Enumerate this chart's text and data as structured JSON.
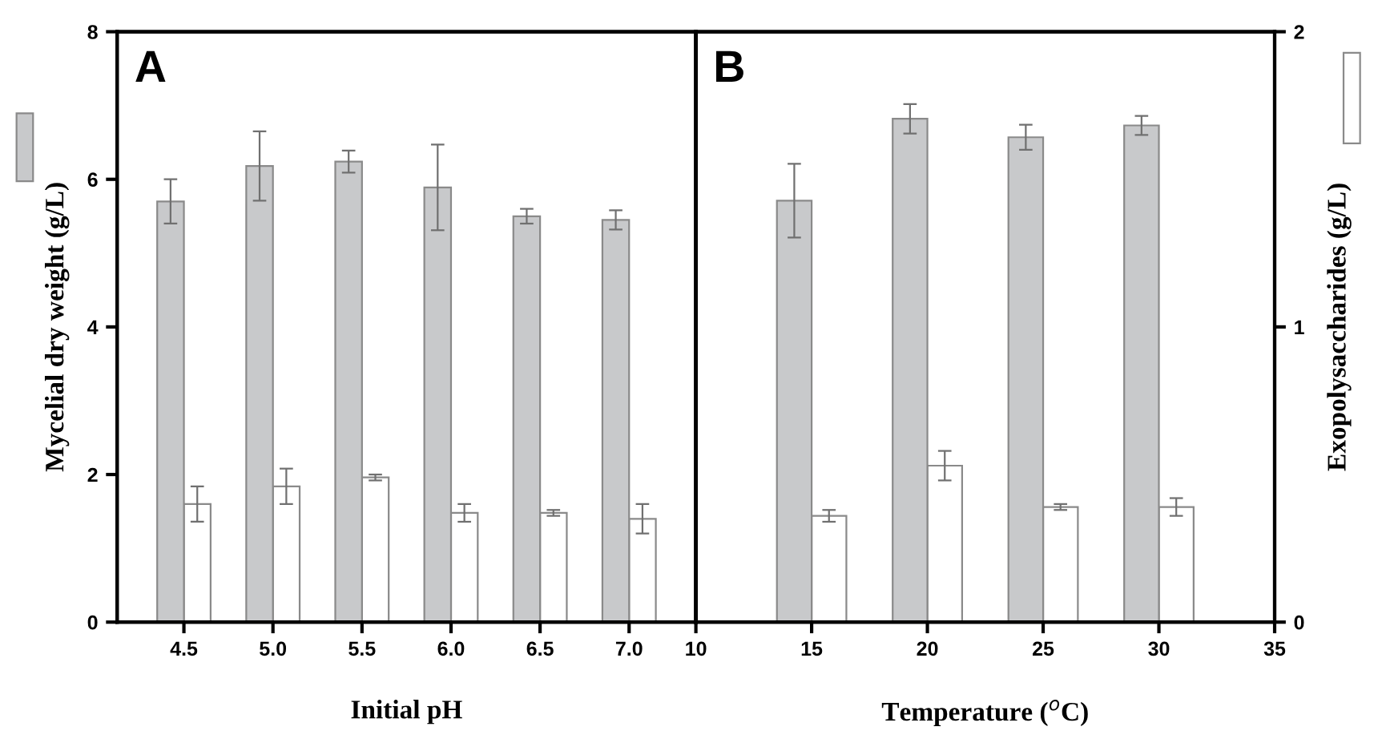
{
  "chart_data": [
    {
      "type": "bar",
      "title": "A",
      "xlabel": "Initial pH",
      "ylabel": "Mycelial dry weight (g/L)",
      "categories": [
        "4.5",
        "5.0",
        "5.5",
        "6.0",
        "6.5",
        "7.0"
      ],
      "ylim": [
        0,
        8
      ],
      "yticks": [
        0,
        2,
        4,
        6,
        8
      ],
      "y2lim": [
        0,
        2
      ],
      "legend": false,
      "grid": false,
      "series": [
        {
          "color": "#c8c9cb",
          "axis": "y",
          "values": [
            5.7,
            6.18,
            6.24,
            5.89,
            5.5,
            5.45
          ],
          "errors": [
            0.3,
            0.47,
            0.15,
            0.58,
            0.1,
            0.13
          ]
        },
        {
          "color": "#ffffff",
          "axis": "y2",
          "values": [
            0.4,
            0.46,
            0.49,
            0.37,
            0.37,
            0.35
          ],
          "errors": [
            0.06,
            0.06,
            0.01,
            0.03,
            0.01,
            0.05
          ]
        }
      ]
    },
    {
      "type": "bar",
      "title": "B",
      "xlabel": "Temperature ($^{o}$C)",
      "y2label": "Exopolysaccharides (g/L)",
      "x": [
        15,
        20,
        25,
        30
      ],
      "xlim": [
        10,
        35
      ],
      "xticks": [
        10,
        15,
        20,
        25,
        30,
        35
      ],
      "ylim": [
        0,
        8
      ],
      "y2lim": [
        0,
        2
      ],
      "y2ticks": [
        0,
        1,
        2
      ],
      "legend": false,
      "grid": false,
      "series": [
        {
          "color": "#c8c9cb",
          "axis": "y",
          "values": [
            5.71,
            6.82,
            6.57,
            6.73
          ],
          "errors": [
            0.5,
            0.2,
            0.17,
            0.13
          ]
        },
        {
          "color": "#ffffff",
          "axis": "y2",
          "values": [
            0.36,
            0.53,
            0.39,
            0.39
          ],
          "errors": [
            0.02,
            0.05,
            0.01,
            0.03
          ]
        }
      ]
    }
  ]
}
